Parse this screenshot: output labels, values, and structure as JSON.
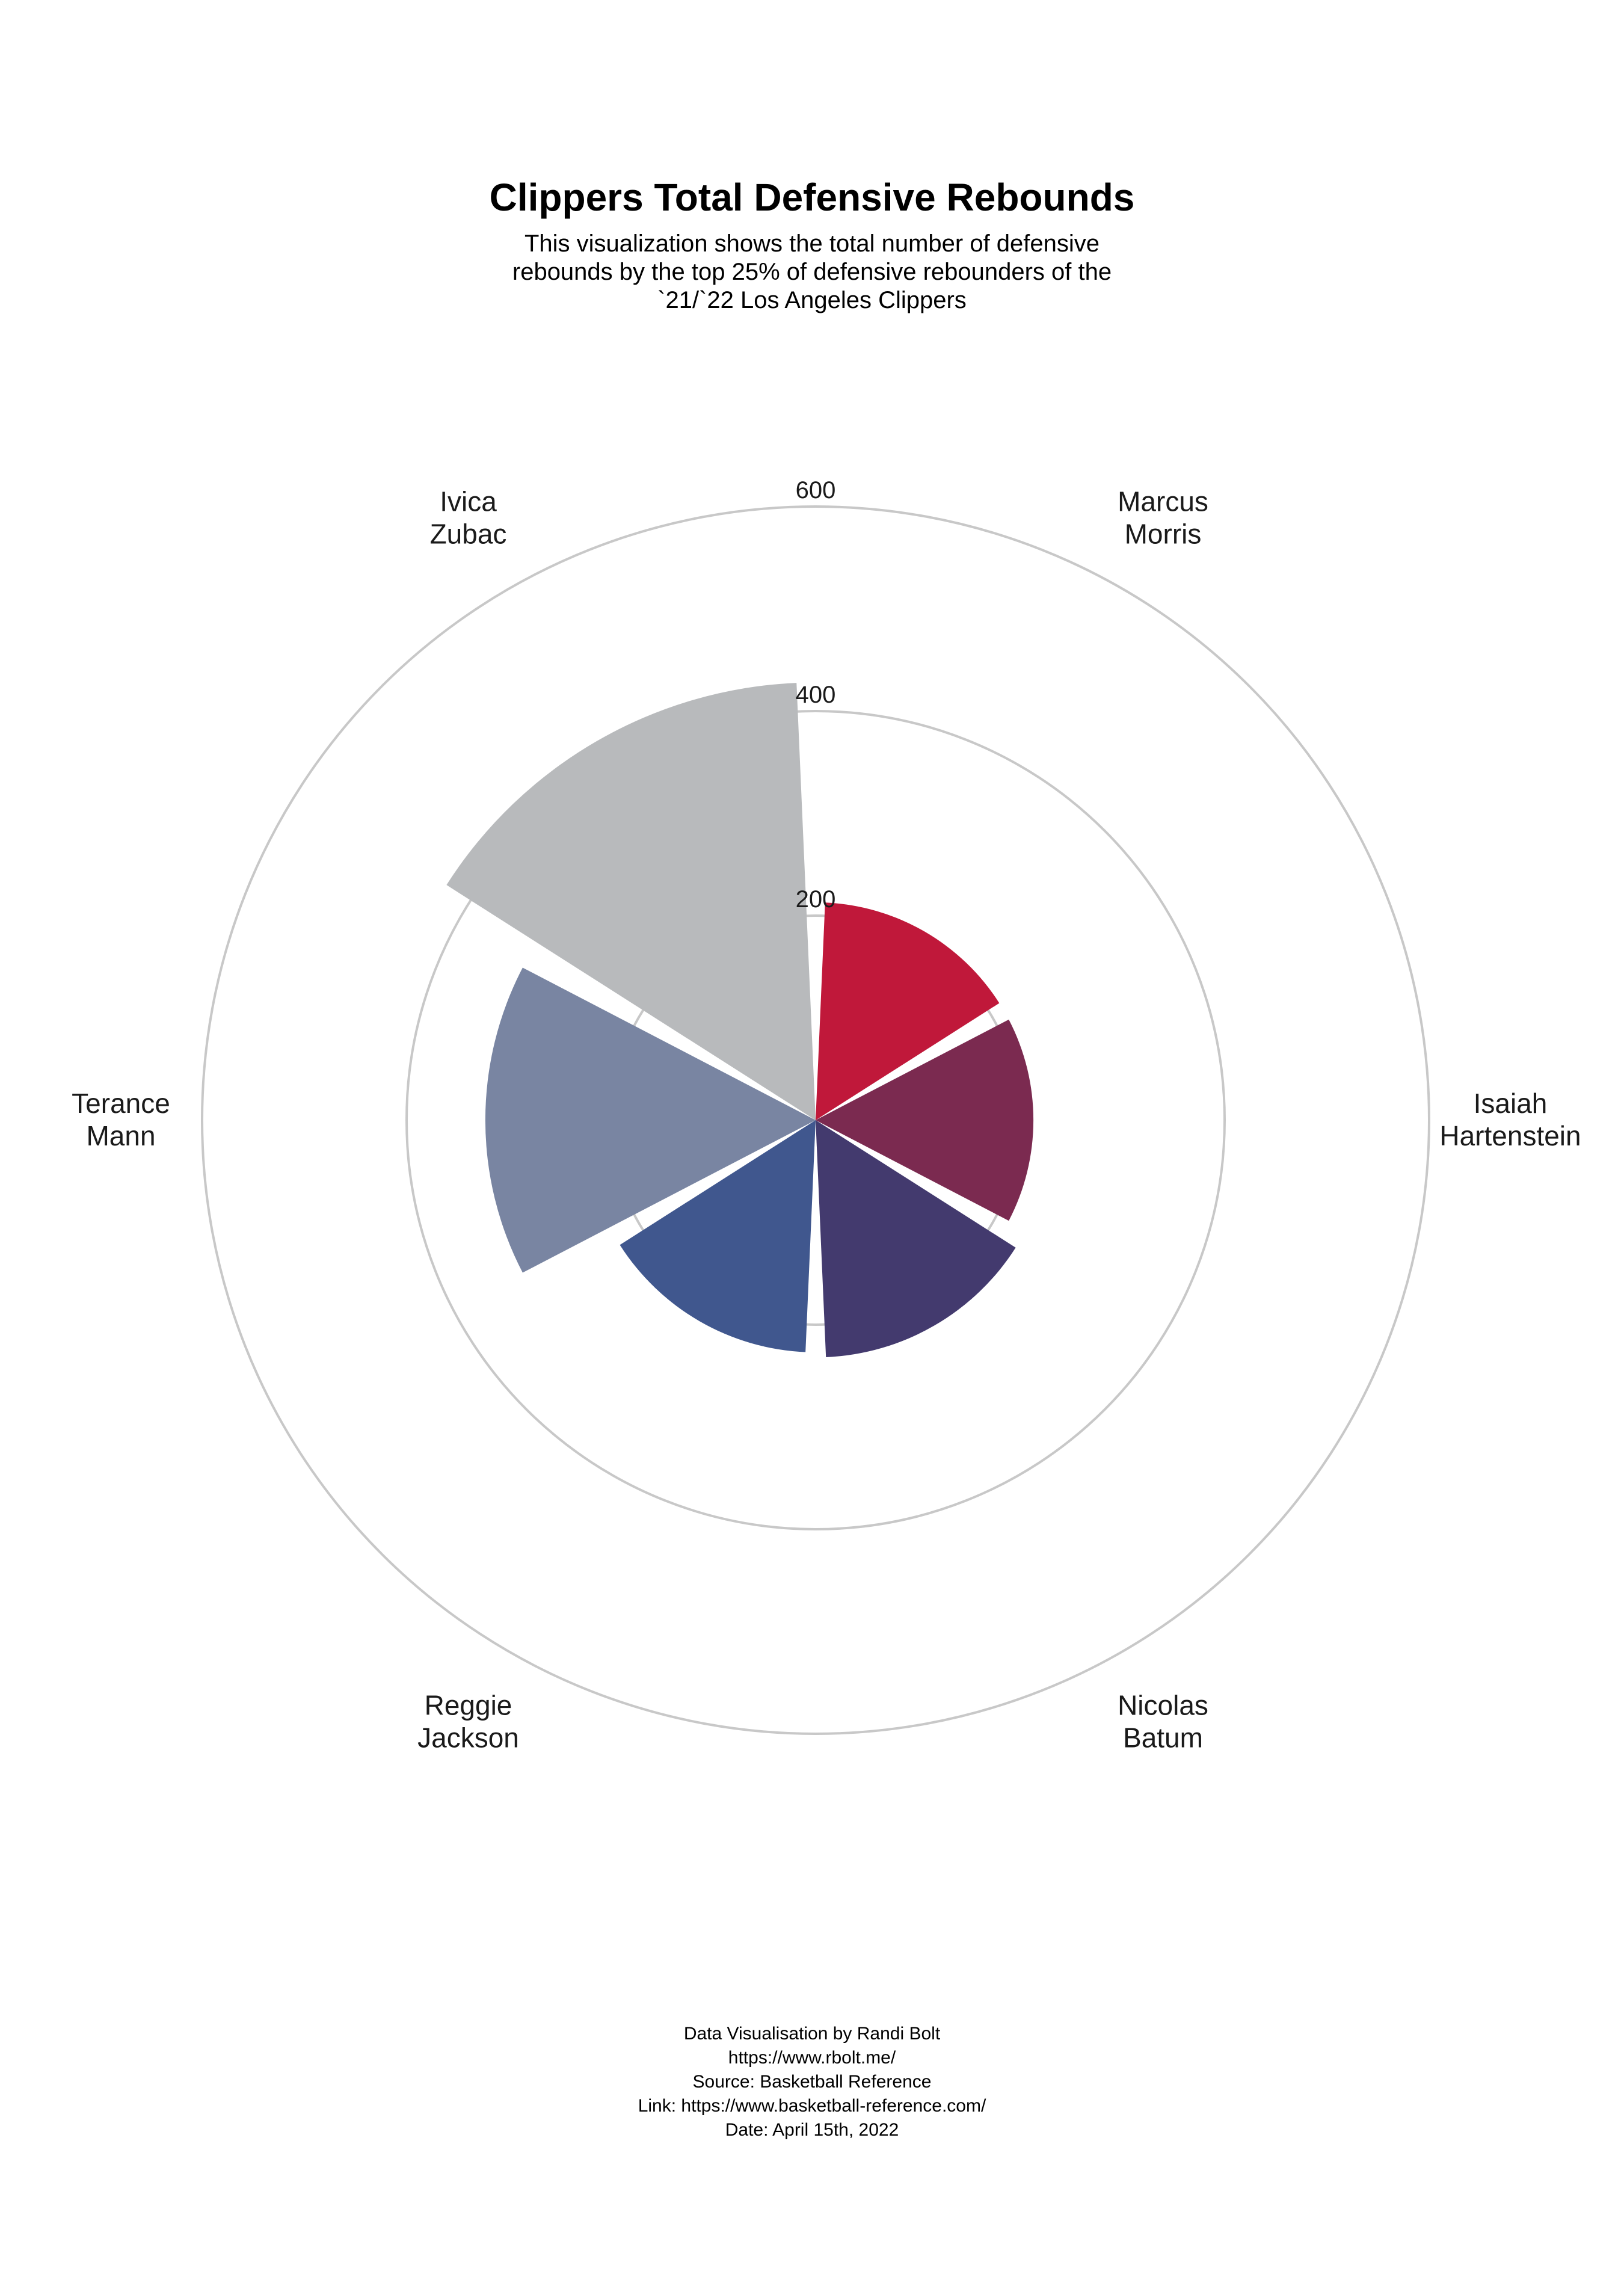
{
  "title": "Clippers Total Defensive Rebounds",
  "subtitle_lines": [
    "This visualization shows the total number of defensive",
    "rebounds by the top 25% of defensive rebounders of the",
    "`21/`22  Los Angeles Clippers"
  ],
  "caption_lines": [
    "Data Visualisation by Randi Bolt",
    "https://www.rbolt.me/",
    "Source: Basketball Reference",
    "Link: https://www.basketball-reference.com/",
    "Date: April 15th, 2022"
  ],
  "chart_data": {
    "type": "bar",
    "coordinate_system": "polar",
    "categories": [
      "Marcus Morris",
      "Isaiah Hartenstein",
      "Nicolas Batum",
      "Reggie Jackson",
      "Terance Mann",
      "Ivica Zubac"
    ],
    "values": [
      213,
      213,
      232,
      227,
      323,
      428
    ],
    "colors": [
      "#c0183a",
      "#7b2a50",
      "#433a6e",
      "#40578e",
      "#7985a2",
      "#b8babc"
    ],
    "rlim": [
      0,
      600
    ],
    "rings": [
      200,
      400,
      600
    ],
    "tick_labels": [
      "200",
      "400",
      "600"
    ],
    "grid": true,
    "legend": "none"
  }
}
